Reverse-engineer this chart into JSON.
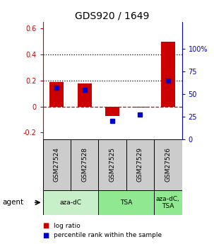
{
  "title": "GDS920 / 1649",
  "samples": [
    "GSM27524",
    "GSM27528",
    "GSM27525",
    "GSM27529",
    "GSM27526"
  ],
  "log_ratios": [
    0.19,
    0.18,
    -0.07,
    -0.01,
    0.5
  ],
  "percentile_ranks_pct": [
    57,
    55,
    20,
    27,
    65
  ],
  "agents": [
    {
      "label": "aza-dC",
      "start": 0,
      "end": 2,
      "color": "#c8f0c8"
    },
    {
      "label": "TSA",
      "start": 2,
      "end": 4,
      "color": "#90e890"
    },
    {
      "label": "aza-dC,\nTSA",
      "start": 4,
      "end": 5,
      "color": "#90e890"
    }
  ],
  "bar_color": "#cc0000",
  "dot_color": "#0000cc",
  "ylim_left": [
    -0.25,
    0.65
  ],
  "ylim_right": [
    0,
    130
  ],
  "yticks_left": [
    -0.2,
    0.0,
    0.2,
    0.4,
    0.6
  ],
  "ytick_labels_left": [
    "-0.2",
    "0",
    "0.2",
    "0.4",
    "0.6"
  ],
  "yticks_right": [
    0,
    25,
    50,
    75,
    100
  ],
  "ytick_labels_right": [
    "0",
    "25",
    "50",
    "75",
    "100%"
  ],
  "hlines": [
    0.2,
    0.4
  ],
  "zero_line": 0.0,
  "bg_color": "#ffffff",
  "sample_box_color": "#cccccc",
  "legend_log": "log ratio",
  "legend_pct": "percentile rank within the sample",
  "bar_width": 0.5
}
